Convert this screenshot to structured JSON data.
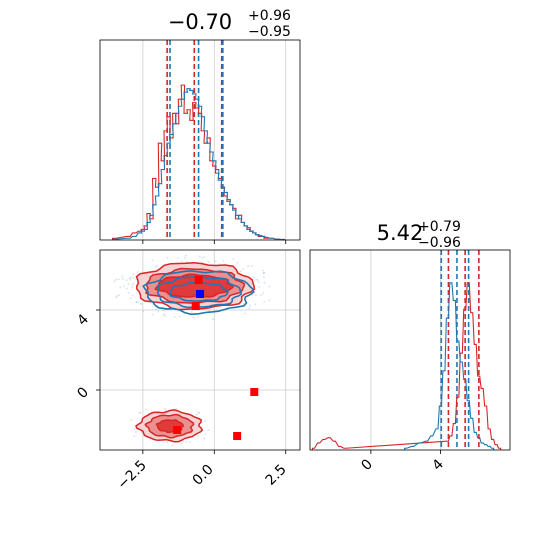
{
  "chart_data": [
    {
      "type": "histogram",
      "panel": "marginal-x",
      "title": {
        "median": "−0.70",
        "upper": "+0.96",
        "lower": "−0.95"
      },
      "xlim": [
        -4.0,
        3.0
      ],
      "grid": true,
      "series": [
        {
          "color": "#d62728",
          "x": [
            -3.5,
            -3.0,
            -2.8,
            -2.6,
            -2.5,
            -2.4,
            -2.3,
            -2.2,
            -2.1,
            -2.0,
            -1.9,
            -1.8,
            -1.7,
            -1.6,
            -1.5,
            -1.4,
            -1.3,
            -1.2,
            -1.1,
            -1.0,
            -0.9,
            -0.8,
            -0.7,
            -0.6,
            -0.5,
            -0.4,
            -0.3,
            -0.2,
            -0.1,
            0.0,
            0.1,
            0.2,
            0.3,
            0.4,
            0.5,
            0.6,
            0.7,
            0.8,
            0.9,
            1.0,
            1.1,
            1.2,
            1.3,
            1.4,
            1.5,
            1.6,
            1.7,
            1.8,
            2.0,
            2.2,
            2.4
          ],
          "counts": [
            0.01,
            0.02,
            0.04,
            0.05,
            0.06,
            0.08,
            0.15,
            0.12,
            0.35,
            0.3,
            0.55,
            0.45,
            0.62,
            0.7,
            0.58,
            0.72,
            0.66,
            0.8,
            0.88,
            0.72,
            0.74,
            0.68,
            0.78,
            0.75,
            0.72,
            0.62,
            0.55,
            0.58,
            0.45,
            0.42,
            0.38,
            0.35,
            0.3,
            0.25,
            0.22,
            0.2,
            0.18,
            0.12,
            0.14,
            0.1,
            0.08,
            0.07,
            0.05,
            0.04,
            0.03,
            0.02,
            0.02,
            0.01,
            0.01,
            0.005,
            0.003
          ],
          "quantiles": [
            -1.65,
            -0.7,
            0.26
          ]
        },
        {
          "color": "#1f77b4",
          "x": [
            -3.5,
            -3.0,
            -2.8,
            -2.6,
            -2.5,
            -2.4,
            -2.3,
            -2.2,
            -2.1,
            -2.0,
            -1.9,
            -1.8,
            -1.7,
            -1.6,
            -1.5,
            -1.4,
            -1.3,
            -1.2,
            -1.1,
            -1.0,
            -0.9,
            -0.8,
            -0.7,
            -0.6,
            -0.5,
            -0.4,
            -0.3,
            -0.2,
            -0.1,
            0.0,
            0.1,
            0.2,
            0.3,
            0.4,
            0.5,
            0.6,
            0.7,
            0.8,
            0.9,
            1.0,
            1.1,
            1.2,
            1.3,
            1.4,
            1.5,
            1.6,
            1.7,
            1.8,
            2.0,
            2.2,
            2.4
          ],
          "counts": [
            0.005,
            0.01,
            0.02,
            0.04,
            0.05,
            0.06,
            0.1,
            0.14,
            0.2,
            0.25,
            0.32,
            0.4,
            0.48,
            0.55,
            0.6,
            0.66,
            0.72,
            0.76,
            0.8,
            0.84,
            0.86,
            0.85,
            0.83,
            0.8,
            0.76,
            0.7,
            0.62,
            0.55,
            0.5,
            0.45,
            0.4,
            0.34,
            0.3,
            0.27,
            0.23,
            0.2,
            0.17,
            0.14,
            0.12,
            0.1,
            0.08,
            0.06,
            0.05,
            0.04,
            0.03,
            0.025,
            0.02,
            0.015,
            0.01,
            0.005,
            0.002
          ],
          "quantiles": [
            -1.55,
            -0.55,
            0.3
          ]
        }
      ]
    },
    {
      "type": "histogram",
      "panel": "marginal-y",
      "title": {
        "median": "5.42",
        "upper": "+0.79",
        "lower": "−0.96"
      },
      "xlim": [
        -3.5,
        8.0
      ],
      "xticks": [
        "0",
        "4"
      ],
      "grid": true,
      "series": [
        {
          "color": "#d62728",
          "x": [
            -3.3,
            -3.0,
            -2.7,
            -2.4,
            -2.1,
            -1.8,
            -1.5,
            4.4,
            4.6,
            4.8,
            5.0,
            5.2,
            5.4,
            5.6,
            5.8,
            6.0,
            6.2,
            6.4,
            6.6,
            6.8,
            7.0,
            7.2,
            7.4
          ],
          "counts": [
            0.01,
            0.04,
            0.06,
            0.07,
            0.05,
            0.02,
            0.01,
            0.05,
            0.08,
            0.15,
            0.3,
            0.55,
            0.8,
            0.95,
            0.78,
            0.6,
            0.42,
            0.35,
            0.25,
            0.12,
            0.06,
            0.03,
            0.01
          ],
          "quantiles": [
            4.46,
            5.42,
            6.21
          ]
        },
        {
          "color": "#1f77b4",
          "x": [
            2.0,
            2.4,
            2.8,
            3.2,
            3.5,
            3.8,
            4.0,
            4.2,
            4.4,
            4.6,
            4.8,
            5.0,
            5.2,
            5.4,
            5.6,
            5.8,
            6.0,
            6.2,
            6.4,
            6.6,
            6.8,
            7.0
          ],
          "counts": [
            0.01,
            0.02,
            0.04,
            0.05,
            0.08,
            0.12,
            0.25,
            0.45,
            0.75,
            0.95,
            0.85,
            0.62,
            0.5,
            0.4,
            0.28,
            0.18,
            0.1,
            0.07,
            0.04,
            0.03,
            0.02,
            0.01
          ],
          "quantiles": [
            4.05,
            4.95,
            5.62
          ]
        }
      ]
    },
    {
      "type": "contour",
      "panel": "joint",
      "xlim": [
        -4.0,
        3.0
      ],
      "ylim": [
        -3.0,
        7.0
      ],
      "xticks": [
        "−2.5",
        "0.0",
        "2.5"
      ],
      "yticks": [
        "0",
        "4"
      ],
      "grid": true,
      "red_contours": [
        {
          "cx": -0.7,
          "cy": 5.2,
          "rx": [
            1.3,
            1.7,
            2.05
          ],
          "ry": [
            0.55,
            0.85,
            1.15
          ]
        },
        {
          "cx": -1.55,
          "cy": -1.8,
          "rx": [
            0.45,
            0.8,
            1.1
          ],
          "ry": [
            0.3,
            0.55,
            0.75
          ]
        }
      ],
      "blue_contours": [
        {
          "cx": -0.55,
          "cy": 4.9,
          "rx": [
            1.0,
            1.45,
            1.85
          ],
          "ry": [
            0.45,
            0.75,
            1.05
          ]
        }
      ],
      "markers": [
        {
          "x": -0.55,
          "y": 5.5,
          "color": "#ff0000"
        },
        {
          "x": -0.65,
          "y": 4.2,
          "color": "#ff0000"
        },
        {
          "x": 1.4,
          "y": -0.1,
          "color": "#ff0000"
        },
        {
          "x": -1.3,
          "y": -2.0,
          "color": "#ff0000"
        },
        {
          "x": 0.8,
          "y": -2.3,
          "color": "#ff0000"
        },
        {
          "x": -0.5,
          "y": 4.8,
          "color": "#0000ff"
        }
      ]
    }
  ]
}
